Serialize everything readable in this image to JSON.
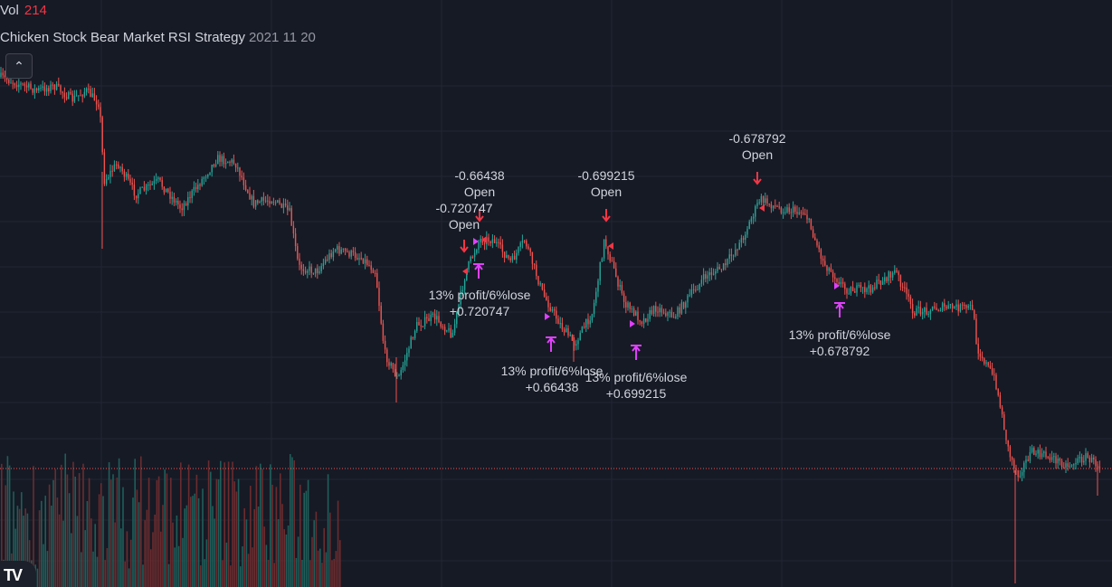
{
  "legend": {
    "volume_label": "Vol",
    "volume_value": "214",
    "strategy_name": "Chicken Stock Bear Market RSI Strategy",
    "strategy_params": "2021 11 20"
  },
  "controls": {
    "collapse_icon": "chevron-up-icon",
    "logo": "tradingview-logo"
  },
  "colors": {
    "background": "#161a25",
    "grid": "#232632",
    "up_candle": "#26a69a",
    "down_candle": "#ef5350",
    "entry_marker": "#f23645",
    "exit_marker": "#e040fb",
    "price_line": "#ef5350"
  },
  "trade_labels": {
    "t1": {
      "entry_value": "-0.720747",
      "entry_label": "Open",
      "exit_title": "13% profit/6%lose",
      "exit_value": "+0.720747"
    },
    "t2": {
      "entry_value": "-0.66438",
      "entry_label": "Open",
      "exit_title": "13% profit/6%lose",
      "exit_value": "+0.66438"
    },
    "t3": {
      "entry_value": "-0.699215",
      "entry_label": "Open",
      "exit_title": "13% profit/6%lose",
      "exit_value": "+0.699215"
    },
    "t4": {
      "entry_value": "-0.678792",
      "entry_label": "Open",
      "exit_title": "13% profit/6%lose",
      "exit_value": "+0.678792"
    }
  }
}
